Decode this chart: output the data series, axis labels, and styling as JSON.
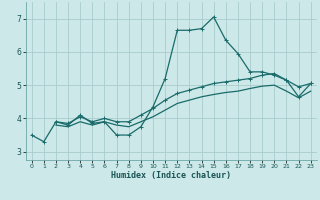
{
  "xlabel": "Humidex (Indice chaleur)",
  "xlim": [
    -0.5,
    23.5
  ],
  "ylim": [
    2.75,
    7.5
  ],
  "yticks": [
    3,
    4,
    5,
    6,
    7
  ],
  "xticks": [
    0,
    1,
    2,
    3,
    4,
    5,
    6,
    7,
    8,
    9,
    10,
    11,
    12,
    13,
    14,
    15,
    16,
    17,
    18,
    19,
    20,
    21,
    22,
    23
  ],
  "bg_color": "#cce8e8",
  "grid_color": "#aacccc",
  "line_color": "#1a6b6b",
  "line1_x": [
    0,
    1,
    2,
    3,
    4,
    5,
    6,
    7,
    8,
    9,
    10,
    11,
    12,
    13,
    14,
    15,
    16,
    17,
    18,
    19,
    20,
    21,
    22,
    23
  ],
  "line1_y": [
    3.5,
    3.3,
    3.9,
    3.8,
    4.1,
    3.85,
    3.9,
    3.5,
    3.5,
    3.75,
    4.35,
    5.2,
    6.65,
    6.65,
    6.7,
    7.05,
    6.35,
    5.95,
    5.4,
    5.4,
    5.3,
    5.15,
    4.65,
    5.05
  ],
  "line2_x": [
    2,
    3,
    4,
    5,
    6,
    7,
    8,
    9,
    10,
    11,
    12,
    13,
    14,
    15,
    16,
    17,
    18,
    19,
    20,
    21,
    22,
    23
  ],
  "line2_y": [
    3.9,
    3.85,
    4.05,
    3.9,
    4.0,
    3.9,
    3.9,
    4.1,
    4.3,
    4.55,
    4.75,
    4.85,
    4.95,
    5.05,
    5.1,
    5.15,
    5.2,
    5.3,
    5.35,
    5.15,
    4.95,
    5.05
  ],
  "line3_x": [
    2,
    3,
    4,
    5,
    6,
    7,
    8,
    9,
    10,
    11,
    12,
    13,
    14,
    15,
    16,
    17,
    18,
    19,
    20,
    21,
    22,
    23
  ],
  "line3_y": [
    3.8,
    3.75,
    3.9,
    3.8,
    3.9,
    3.8,
    3.75,
    3.9,
    4.05,
    4.25,
    4.45,
    4.55,
    4.65,
    4.72,
    4.78,
    4.82,
    4.9,
    4.97,
    5.0,
    4.82,
    4.62,
    4.82
  ]
}
